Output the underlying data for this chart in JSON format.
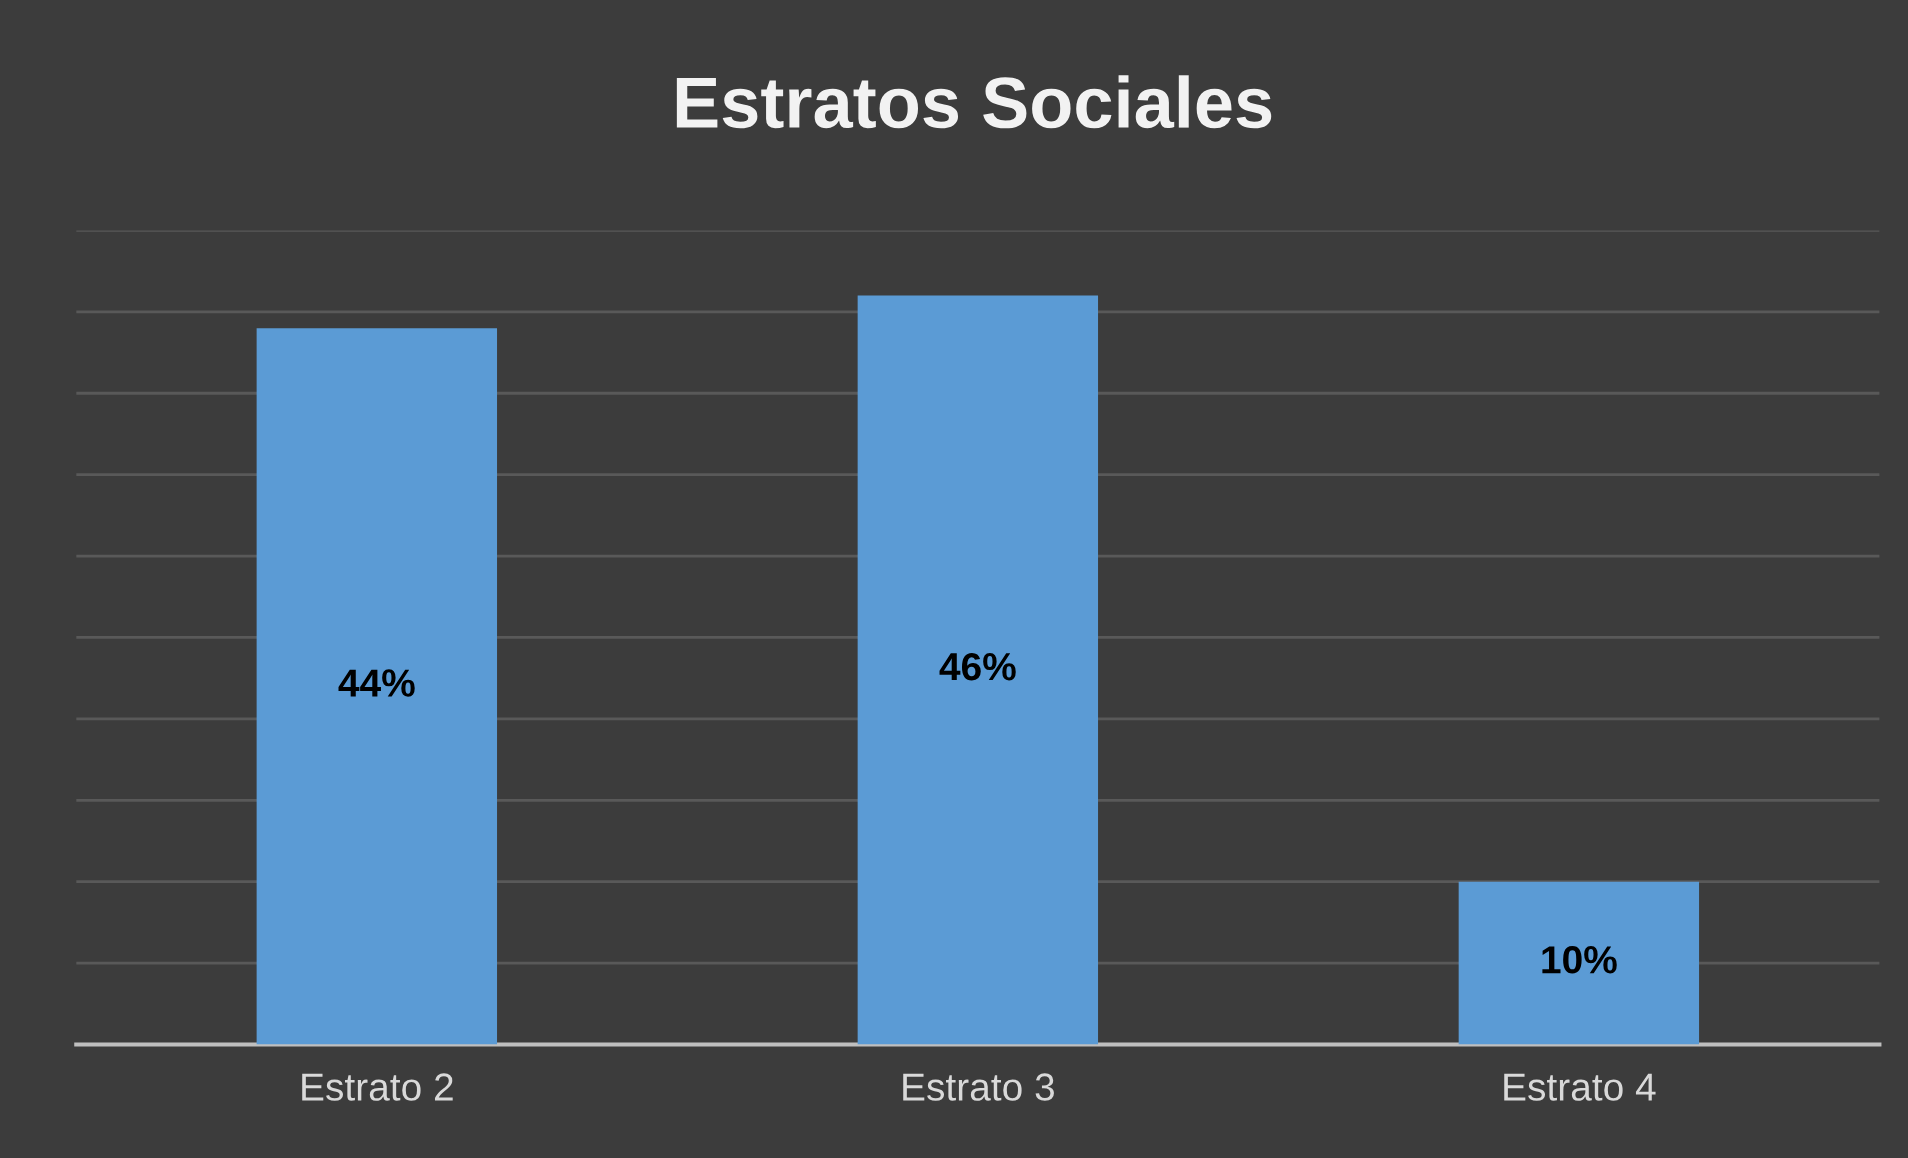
{
  "chart_data": {
    "type": "bar",
    "title": "Estratos Sociales",
    "categories": [
      "Estrato 2",
      "Estrato 3",
      "Estrato 4"
    ],
    "values": [
      44,
      46,
      10
    ],
    "value_labels": [
      "44%",
      "46%",
      "10%"
    ],
    "color": "#5b9bd5",
    "ylim": [
      0,
      50
    ],
    "yticks": [
      {
        "value": 0,
        "label": null
      },
      {
        "value": 5,
        "label": null
      },
      {
        "value": 10,
        "label": null
      },
      {
        "value": 15,
        "label": null
      },
      {
        "value": 20,
        "label": null
      },
      {
        "value": 25,
        "label": null
      },
      {
        "value": 30,
        "label": null
      },
      {
        "value": 35,
        "label": null
      },
      {
        "value": 40,
        "label": null
      },
      {
        "value": 45,
        "label": null
      },
      {
        "value": 50,
        "label": null
      }
    ],
    "tick_labels": "x",
    "grid": "y"
  }
}
